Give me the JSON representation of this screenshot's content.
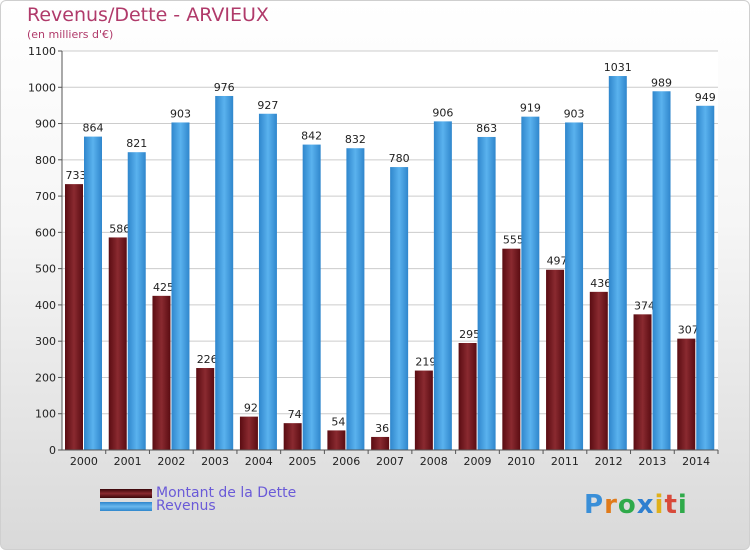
{
  "title": "Revenus/Dette - ARVIEUX",
  "subtitle": "(en milliers d'€)",
  "chart_data": {
    "type": "bar",
    "categories": [
      "2000",
      "2001",
      "2002",
      "2003",
      "2004",
      "2005",
      "2006",
      "2007",
      "2008",
      "2009",
      "2010",
      "2011",
      "2012",
      "2013",
      "2014"
    ],
    "series": [
      {
        "name": "Montant de la Dette",
        "values": [
          733,
          586,
          425,
          226,
          92,
          74,
          54,
          36,
          219,
          295,
          555,
          497,
          436,
          374,
          307
        ],
        "color": "#7a1f25"
      },
      {
        "name": "Revenus",
        "values": [
          864,
          821,
          903,
          976,
          927,
          842,
          832,
          780,
          906,
          863,
          919,
          903,
          1031,
          989,
          949
        ],
        "color": "#4aa6e6"
      }
    ],
    "ylim": [
      0,
      1100
    ],
    "yticks": [
      0,
      100,
      200,
      300,
      400,
      500,
      600,
      700,
      800,
      900,
      1000,
      1100
    ],
    "grid": true,
    "legend": "bottom-left"
  },
  "legend": {
    "items": [
      {
        "label": "Montant de la Dette",
        "color": "#6a0f16"
      },
      {
        "label": "Revenus",
        "color": "#4aa6e6"
      }
    ]
  },
  "logo": {
    "letters": [
      "P",
      "r",
      "o",
      "x",
      "i",
      "t",
      "i"
    ],
    "colors": [
      "#3a8fd8",
      "#e07a1a",
      "#2faa4a",
      "#2f7fd0",
      "#e0b01a",
      "#d84a3a",
      "#2faa4a"
    ]
  }
}
